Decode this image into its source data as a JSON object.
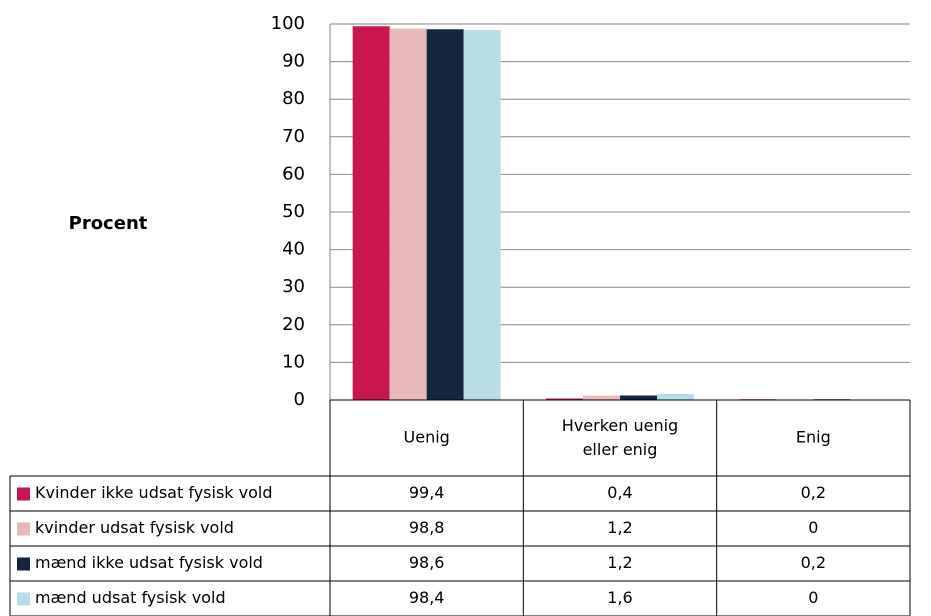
{
  "chart_data": {
    "type": "bar",
    "y_label": "Procent",
    "categories": [
      "Uenig",
      "Hverken uenig eller enig",
      "Enig"
    ],
    "series": [
      {
        "name": "Kvinder ikke udsat fysisk vold",
        "color": "#c8174e",
        "values": [
          99.4,
          0.4,
          0.2
        ],
        "value_labels": [
          "99,4",
          "0,4",
          "0,2"
        ]
      },
      {
        "name": "kvinder udsat fysisk vold",
        "color": "#e8b9b9",
        "values": [
          98.8,
          1.2,
          0
        ],
        "value_labels": [
          "98,8",
          "1,2",
          "0"
        ]
      },
      {
        "name": "mænd ikke udsat fysisk vold",
        "color": "#14263f",
        "values": [
          98.6,
          1.2,
          0.2
        ],
        "value_labels": [
          "98,6",
          "1,2",
          "0,2"
        ]
      },
      {
        "name": "mænd udsat fysisk vold",
        "color": "#b7dde6",
        "values": [
          98.4,
          1.6,
          0
        ],
        "value_labels": [
          "98,4",
          "1,6",
          "0"
        ]
      }
    ],
    "ylim": [
      0,
      100
    ],
    "yticks": [
      0,
      10,
      20,
      30,
      40,
      50,
      60,
      70,
      80,
      90,
      100
    ],
    "grid": true
  }
}
